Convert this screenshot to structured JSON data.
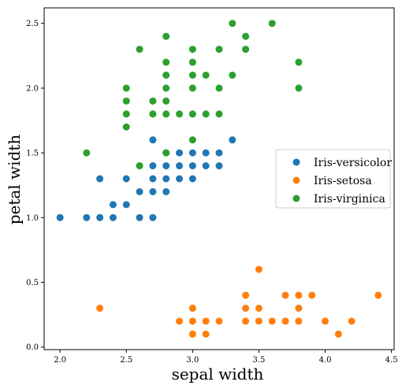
{
  "chart_data": {
    "type": "scatter",
    "xlabel": "sepal width",
    "ylabel": "petal width",
    "xlim": [
      1.88,
      4.52
    ],
    "ylim": [
      -0.02,
      2.62
    ],
    "xticks": [
      "2.0",
      "2.5",
      "3.0",
      "3.5",
      "4.0",
      "4.5"
    ],
    "yticks": [
      "0.0",
      "0.5",
      "1.0",
      "1.5",
      "2.0",
      "2.5"
    ],
    "legend_position": "center-right",
    "grid": false,
    "series": [
      {
        "name": "Iris-versicolor",
        "color": "#1f77b4",
        "points": [
          [
            2.0,
            1.0
          ],
          [
            2.2,
            1.0
          ],
          [
            2.3,
            1.0
          ],
          [
            2.3,
            1.3
          ],
          [
            2.4,
            1.0
          ],
          [
            2.4,
            1.1
          ],
          [
            2.5,
            1.1
          ],
          [
            2.5,
            1.3
          ],
          [
            2.6,
            1.0
          ],
          [
            2.6,
            1.2
          ],
          [
            2.7,
            1.0
          ],
          [
            2.7,
            1.2
          ],
          [
            2.7,
            1.3
          ],
          [
            2.7,
            1.4
          ],
          [
            2.7,
            1.6
          ],
          [
            2.8,
            1.2
          ],
          [
            2.8,
            1.3
          ],
          [
            2.8,
            1.4
          ],
          [
            2.8,
            1.5
          ],
          [
            2.9,
            1.3
          ],
          [
            2.9,
            1.4
          ],
          [
            2.9,
            1.5
          ],
          [
            3.0,
            1.3
          ],
          [
            3.0,
            1.4
          ],
          [
            3.0,
            1.5
          ],
          [
            3.1,
            1.4
          ],
          [
            3.1,
            1.5
          ],
          [
            3.2,
            1.4
          ],
          [
            3.2,
            1.5
          ],
          [
            3.3,
            1.6
          ]
        ]
      },
      {
        "name": "Iris-setosa",
        "color": "#ff7f0e",
        "points": [
          [
            2.3,
            0.3
          ],
          [
            2.9,
            0.2
          ],
          [
            3.0,
            0.1
          ],
          [
            3.0,
            0.2
          ],
          [
            3.0,
            0.3
          ],
          [
            3.1,
            0.1
          ],
          [
            3.1,
            0.2
          ],
          [
            3.2,
            0.2
          ],
          [
            3.4,
            0.2
          ],
          [
            3.4,
            0.3
          ],
          [
            3.4,
            0.4
          ],
          [
            3.5,
            0.2
          ],
          [
            3.5,
            0.3
          ],
          [
            3.5,
            0.6
          ],
          [
            3.6,
            0.2
          ],
          [
            3.7,
            0.2
          ],
          [
            3.7,
            0.4
          ],
          [
            3.8,
            0.2
          ],
          [
            3.8,
            0.3
          ],
          [
            3.8,
            0.4
          ],
          [
            3.9,
            0.4
          ],
          [
            4.0,
            0.2
          ],
          [
            4.1,
            0.1
          ],
          [
            4.2,
            0.2
          ],
          [
            4.4,
            0.4
          ]
        ]
      },
      {
        "name": "Iris-virginica",
        "color": "#2ca02c",
        "points": [
          [
            2.2,
            1.5
          ],
          [
            2.5,
            1.7
          ],
          [
            2.5,
            1.8
          ],
          [
            2.5,
            1.9
          ],
          [
            2.5,
            2.0
          ],
          [
            2.6,
            1.4
          ],
          [
            2.6,
            2.3
          ],
          [
            2.7,
            1.8
          ],
          [
            2.7,
            1.9
          ],
          [
            2.8,
            1.5
          ],
          [
            2.8,
            1.8
          ],
          [
            2.8,
            1.9
          ],
          [
            2.8,
            2.0
          ],
          [
            2.8,
            2.1
          ],
          [
            2.8,
            2.2
          ],
          [
            2.8,
            2.4
          ],
          [
            2.9,
            1.8
          ],
          [
            3.0,
            1.6
          ],
          [
            3.0,
            1.8
          ],
          [
            3.0,
            2.0
          ],
          [
            3.0,
            2.1
          ],
          [
            3.0,
            2.2
          ],
          [
            3.0,
            2.3
          ],
          [
            3.1,
            1.8
          ],
          [
            3.1,
            2.1
          ],
          [
            3.2,
            1.8
          ],
          [
            3.2,
            2.0
          ],
          [
            3.2,
            2.3
          ],
          [
            3.3,
            2.1
          ],
          [
            3.3,
            2.5
          ],
          [
            3.4,
            2.3
          ],
          [
            3.4,
            2.4
          ],
          [
            3.6,
            2.5
          ],
          [
            3.8,
            2.0
          ],
          [
            3.8,
            2.2
          ]
        ]
      }
    ]
  }
}
